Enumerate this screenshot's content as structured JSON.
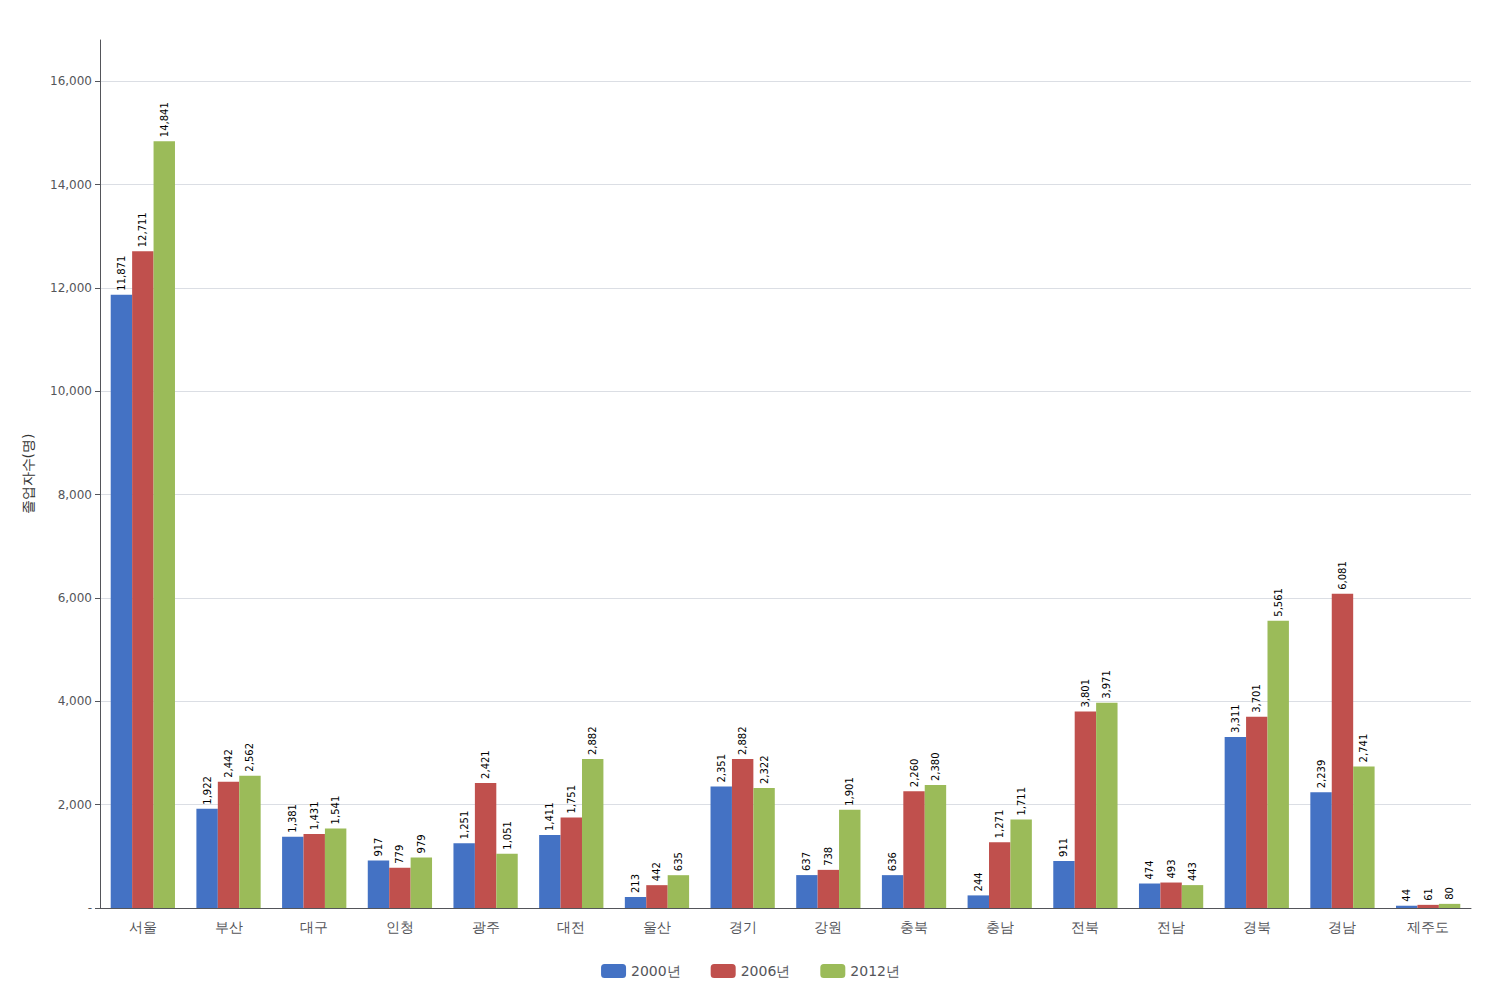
{
  "chart_data": {
    "type": "bar",
    "ylabel": "졸업자수(명)",
    "categories": [
      "서울",
      "부산",
      "대구",
      "인청",
      "광주",
      "대전",
      "울산",
      "경기",
      "강원",
      "충북",
      "충남",
      "전북",
      "전남",
      "경북",
      "경남",
      "제주도"
    ],
    "series": [
      {
        "name": "2000년",
        "color": "#4472C4",
        "values": [
          11871,
          1922,
          1381,
          917,
          1251,
          1411,
          213,
          2351,
          637,
          636,
          244,
          911,
          474,
          3311,
          2239,
          44
        ],
        "value_labels": [
          "11,871",
          "1,922",
          "1,381",
          "917",
          "1,251",
          "1,411",
          "213",
          "2,351",
          "637",
          "636",
          "244",
          "911",
          "474",
          "3,311",
          "2,239",
          "44"
        ]
      },
      {
        "name": "2006년",
        "color": "#C0504D",
        "values": [
          12711,
          2442,
          1431,
          779,
          2421,
          1751,
          442,
          2882,
          738,
          2260,
          1271,
          3801,
          493,
          3701,
          6081,
          61
        ],
        "value_labels": [
          "12,711",
          "2,442",
          "1,431",
          "779",
          "2,421",
          "1,751",
          "442",
          "2,882",
          "738",
          "2,260",
          "1,271",
          "3,801",
          "493",
          "3,701",
          "6,081",
          "61"
        ]
      },
      {
        "name": "2012년",
        "color": "#9BBB59",
        "values": [
          14841,
          2562,
          1541,
          979,
          1051,
          2882,
          635,
          2322,
          1901,
          2380,
          1711,
          3971,
          443,
          5561,
          2741,
          80
        ],
        "value_labels": [
          "14,841",
          "2,562",
          "1,541",
          "979",
          "1,051",
          "2,882",
          "635",
          "2,322",
          "1,901",
          "2,380",
          "1,711",
          "3,971",
          "443",
          "5,561",
          "2,741",
          "80"
        ]
      }
    ],
    "ylim": [
      0,
      16800
    ],
    "yticks": [
      {
        "value": 0,
        "label": "-"
      },
      {
        "value": 2000,
        "label": "2,000"
      },
      {
        "value": 4000,
        "label": "4,000"
      },
      {
        "value": 6000,
        "label": "6,000"
      },
      {
        "value": 8000,
        "label": "8,000"
      },
      {
        "value": 10000,
        "label": "10,000"
      },
      {
        "value": 12000,
        "label": "12,000"
      },
      {
        "value": 14000,
        "label": "14,000"
      },
      {
        "value": 16000,
        "label": "16,000"
      }
    ],
    "grid": true,
    "legend": "bottom",
    "data_labels": true
  }
}
